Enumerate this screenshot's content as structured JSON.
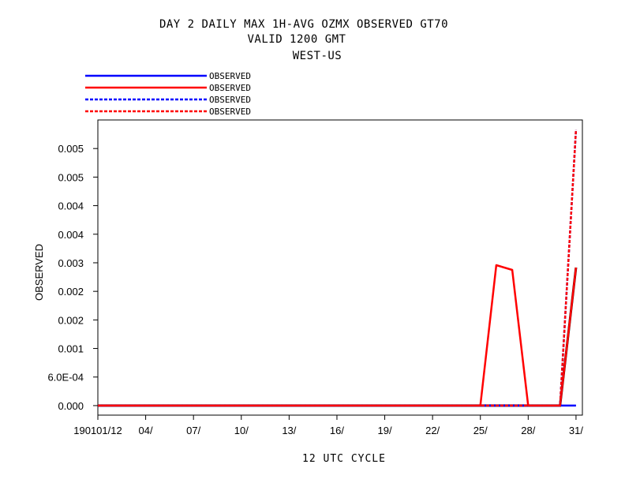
{
  "chart_data": {
    "type": "line",
    "title_lines": [
      "DAY 2 DAILY MAX   1H-AVG OZMX OBSERVED GT70",
      "VALID 1200 GMT",
      "WEST-US"
    ],
    "xlabel": "12 UTC CYCLE",
    "ylabel": "OBSERVED",
    "x_ticks": [
      1,
      4,
      7,
      10,
      13,
      16,
      19,
      22,
      25,
      28,
      31
    ],
    "x_tick_labels": [
      "190101/12",
      "04/",
      "07/",
      "10/",
      "13/",
      "16/",
      "19/",
      "22/",
      "25/",
      "28/",
      "31/"
    ],
    "xlim": [
      1,
      31.4
    ],
    "y_ticks": [
      0,
      0.0006,
      0.0012,
      0.0018,
      0.0024,
      0.003,
      0.0036,
      0.0042,
      0.0048,
      0.0054
    ],
    "y_tick_labels": [
      "0.000",
      "6.0E-04",
      "0.001",
      "0.002",
      "0.002",
      "0.003",
      "0.004",
      "0.004",
      "0.005",
      "0.005"
    ],
    "ylim": [
      -0.0002,
      0.006
    ],
    "legend_position": "top-left, above plot",
    "series": [
      {
        "name": "OBSERVED",
        "color": "#0000ff",
        "dash": "solid",
        "x": [
          1,
          30,
          31
        ],
        "y": [
          0,
          0,
          0
        ]
      },
      {
        "name": "OBSERVED",
        "color": "#ff0000",
        "dash": "solid",
        "x": [
          1,
          25,
          26,
          27,
          28,
          30,
          31
        ],
        "y": [
          0,
          0,
          0.00295,
          0.00285,
          0,
          0,
          0.0029
        ]
      },
      {
        "name": "OBSERVED",
        "color": "#0000ff",
        "dash": "dashed",
        "x": [
          1,
          30,
          31
        ],
        "y": [
          0,
          0,
          0.0058
        ]
      },
      {
        "name": "OBSERVED",
        "color": "#ff0000",
        "dash": "dashed",
        "x": [
          1,
          30,
          31
        ],
        "y": [
          0,
          0,
          0.0058
        ]
      }
    ],
    "extra_lines": [
      {
        "color": "#000000",
        "x": [
          1,
          30,
          31
        ],
        "y": [
          0,
          0,
          0.0029
        ]
      }
    ]
  }
}
